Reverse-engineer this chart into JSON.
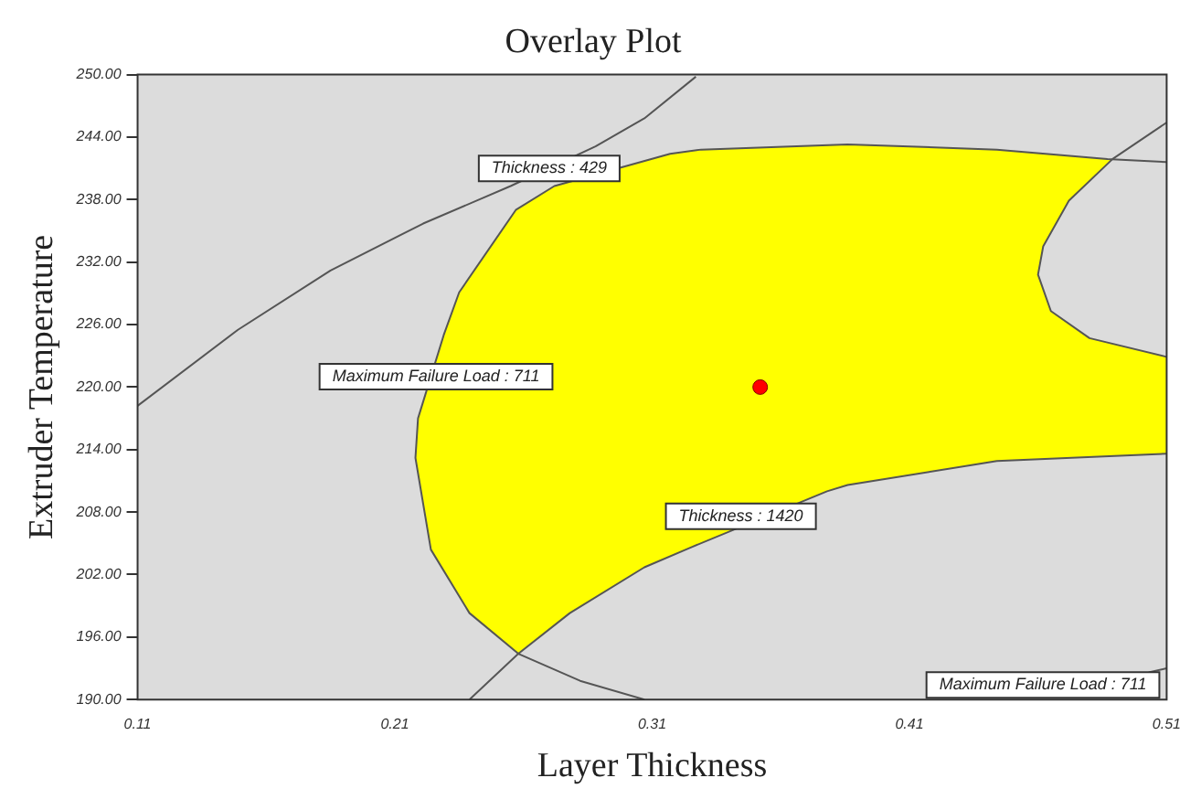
{
  "chart_data": {
    "type": "line",
    "title": "Overlay Plot",
    "xlabel": "Layer Thickness",
    "ylabel": "Extruder Temperature",
    "xlim": [
      0.11,
      0.51
    ],
    "xticks": [
      0.11,
      0.21,
      0.31,
      0.41,
      0.51
    ],
    "ylim": [
      190,
      250
    ],
    "yticks": [
      {
        "value": 190,
        "label": "190.00"
      },
      {
        "value": 196,
        "label": "196.00"
      },
      {
        "value": 202,
        "label": "202.00"
      },
      {
        "value": 208,
        "label": "208.00"
      },
      {
        "value": 214,
        "label": "214.00"
      },
      {
        "value": 220,
        "label": "220.00"
      },
      {
        "value": 226,
        "label": "226.00"
      },
      {
        "value": 232,
        "label": "232.00"
      },
      {
        "value": 238,
        "label": "238.00"
      },
      {
        "value": 244,
        "label": "244.00"
      },
      {
        "value": 250,
        "label": "250.00"
      }
    ],
    "grid": false,
    "legend": false,
    "series": [
      {
        "type": "area",
        "color": "#ffff00",
        "x": [
          0.487,
          0.444,
          0.386,
          0.329,
          0.317,
          0.272,
          0.257,
          0.235,
          0.229,
          0.219,
          0.218,
          0.224,
          0.239,
          0.258,
          0.278,
          0.307,
          0.325,
          0.378,
          0.386,
          0.444,
          0.51,
          0.51,
          0.48,
          0.465,
          0.46,
          0.462,
          0.472,
          0.489
        ],
        "values": [
          241.9,
          242.8,
          243.3,
          242.8,
          242.4,
          239.3,
          237.0,
          229.1,
          225.0,
          217.0,
          213.2,
          204.4,
          198.3,
          194.4,
          198.3,
          202.7,
          204.6,
          210.0,
          210.6,
          212.9,
          213.6,
          222.9,
          224.7,
          227.3,
          230.8,
          233.5,
          237.9,
          241.9
        ]
      },
      {
        "type": "line",
        "color": "#555555",
        "x": [
          0.11,
          0.149,
          0.185,
          0.221,
          0.255,
          0.288,
          0.307,
          0.327
        ],
        "values": [
          218.2,
          225.5,
          231.2,
          235.7,
          239.3,
          243.1,
          245.8,
          249.8
        ]
      },
      {
        "type": "line",
        "color": "#555555",
        "x": [
          0.51,
          0.487,
          0.444,
          0.386,
          0.329,
          0.317,
          0.272,
          0.257,
          0.235,
          0.229,
          0.219,
          0.218,
          0.224,
          0.239,
          0.258,
          0.282,
          0.307
        ],
        "values": [
          241.6,
          241.9,
          242.8,
          243.3,
          242.8,
          242.4,
          239.3,
          237.0,
          229.1,
          225.0,
          217.0,
          213.2,
          204.4,
          198.3,
          194.4,
          191.8,
          190.0
        ]
      },
      {
        "type": "line",
        "color": "#555555",
        "x": [
          0.239,
          0.258,
          0.278,
          0.307,
          0.325,
          0.378,
          0.386,
          0.444,
          0.51
        ],
        "values": [
          190.0,
          194.4,
          198.3,
          202.7,
          204.6,
          210.0,
          210.6,
          212.9,
          213.6
        ]
      },
      {
        "type": "line",
        "color": "#555555",
        "x": [
          0.51,
          0.489,
          0.472,
          0.462,
          0.46,
          0.465,
          0.48,
          0.51
        ],
        "values": [
          245.4,
          241.9,
          237.9,
          233.5,
          230.8,
          227.3,
          224.7,
          222.9
        ]
      },
      {
        "type": "line",
        "color": "#555555",
        "x": [
          0.503,
          0.51
        ],
        "values": [
          192.6,
          193.0
        ]
      },
      {
        "type": "scatter",
        "color": "#ff0000",
        "marker": "circle",
        "x": [
          0.352
        ],
        "values": [
          220
        ]
      }
    ],
    "annotations": [
      {
        "text": "Thickness : 429",
        "x": 0.27,
        "y": 241
      },
      {
        "text": "Maximum Failure Load : 711",
        "x": 0.226,
        "y": 221
      },
      {
        "text": "Thickness : 1420",
        "x": 0.3445,
        "y": 207.6
      },
      "Maximum Failure Load : 711"
    ]
  }
}
